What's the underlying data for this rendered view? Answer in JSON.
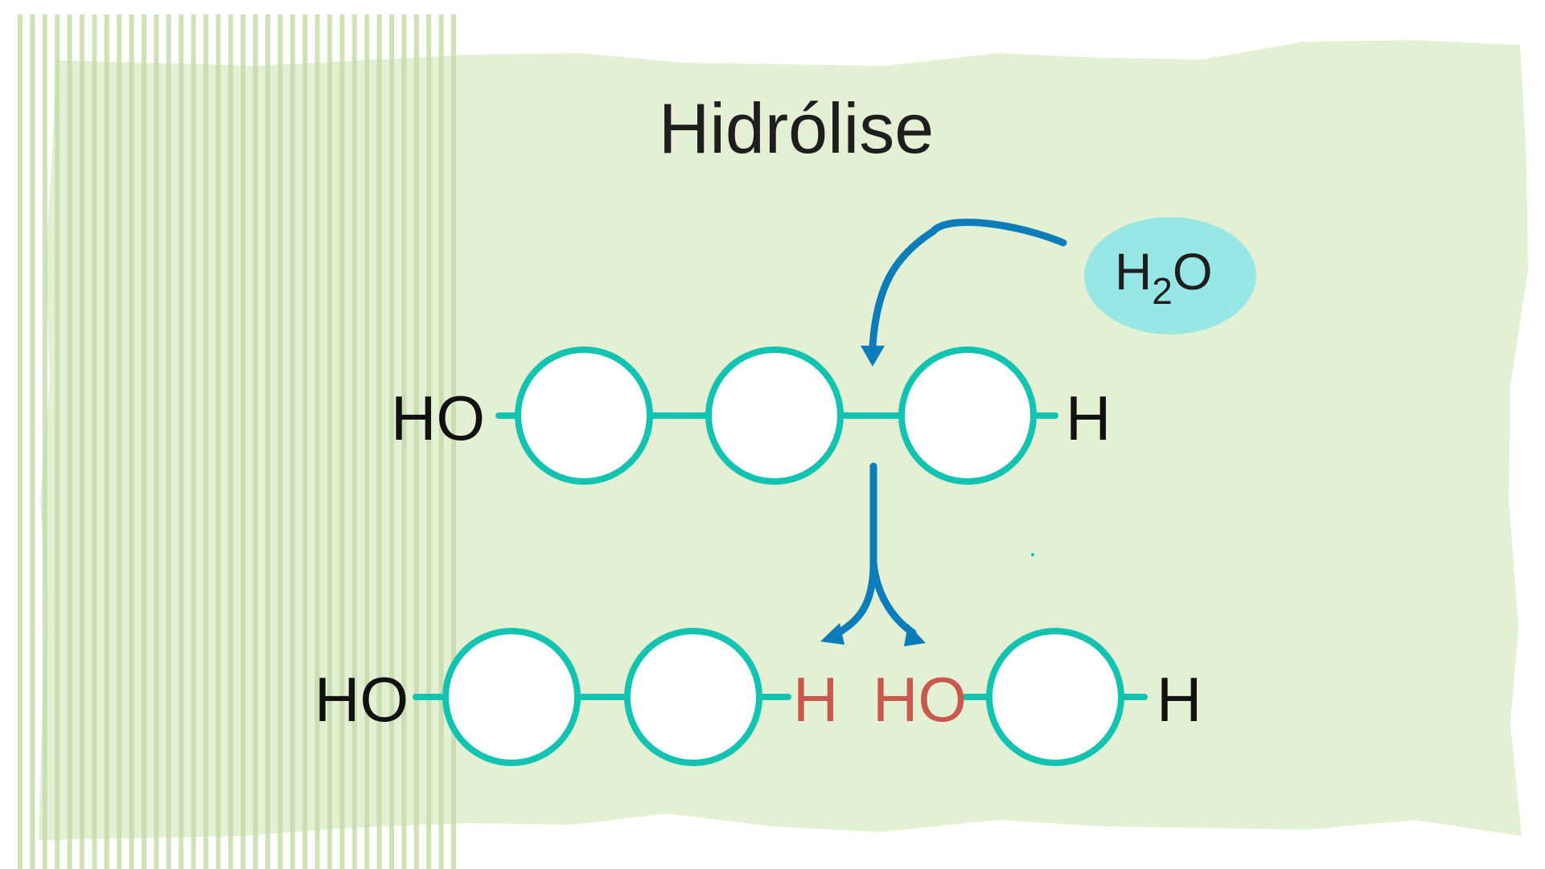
{
  "diagram": {
    "title": "Hidrólise",
    "water": {
      "main": "H",
      "subscript": "2",
      "tail": "O"
    },
    "top_chain": {
      "left_label": "HO",
      "right_label": "H"
    },
    "bottom_chain": {
      "left_label": "HO",
      "split_h": "H",
      "split_ho": "HO",
      "right_label": "H"
    }
  },
  "colors": {
    "panel": "#e3f0d4",
    "stripes": "#c6dcaa",
    "monomer_stroke": "#11c4b1",
    "arrow": "#0b7dbb",
    "water_fill": "#97e8e4",
    "split_text": "#c8574c",
    "text": "#1e1e1e"
  }
}
